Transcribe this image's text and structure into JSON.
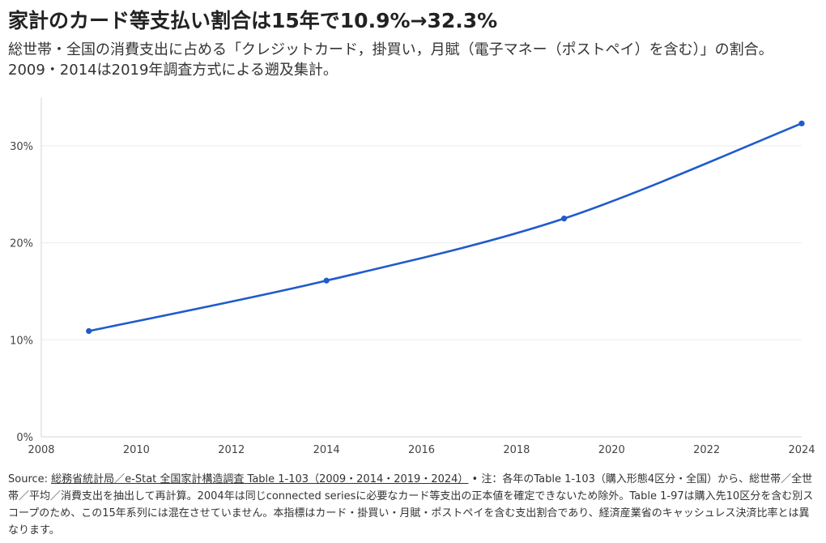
{
  "title": "家計のカード等支払い割合は15年で10.9%→32.3%",
  "subtitle": "総世帯・全国の消費支出に占める「クレジットカード，掛買い，月賦（電子マネー（ポストペイ）を含む）」の割合。2009・2014は2019年調査方式による遡及集計。",
  "chart_data": {
    "type": "line",
    "title": "家計のカード等支払い割合は15年で10.9%→32.3%",
    "subtitle": "総世帯・全国の消費支出に占める「クレジットカード，掛買い，月賦（電子マネー（ポストペイ）を含む）」の割合。2009・2014は2019年調査方式による遡及集計。",
    "xlabel": "",
    "ylabel": "",
    "x": [
      2009,
      2014,
      2019,
      2024
    ],
    "series": [
      {
        "values": [
          10.9,
          16.1,
          22.5,
          32.3
        ]
      }
    ],
    "xlim": [
      2008,
      2024
    ],
    "ylim": [
      0,
      35
    ],
    "xticks": [
      "2008",
      "2010",
      "2012",
      "2014",
      "2016",
      "2018",
      "2020",
      "2022",
      "2024"
    ],
    "yticks": [
      "0%",
      "10%",
      "20%",
      "30%"
    ],
    "grid": true,
    "line_color": "#1f5bcc"
  },
  "footer": {
    "source_prefix": "Source: ",
    "source_link": "総務省統計局／e-Stat 全国家計構造調査 Table 1-103（2009・2014・2019・2024）",
    "note": " • 注：各年のTable 1-103（購入形態4区分・全国）から、総世帯／全世帯／平均／消費支出を抽出して再計算。2004年は同じconnected seriesに必要なカード等支出の正本値を確定できないため除外。Table 1-97は購入先10区分を含む別スコープのため、この15年系列には混在させていません。本指標はカード・掛買い・月賦・ポストペイを含む支出割合であり、経済産業省のキャッシュレス決済比率とは異なります。"
  }
}
